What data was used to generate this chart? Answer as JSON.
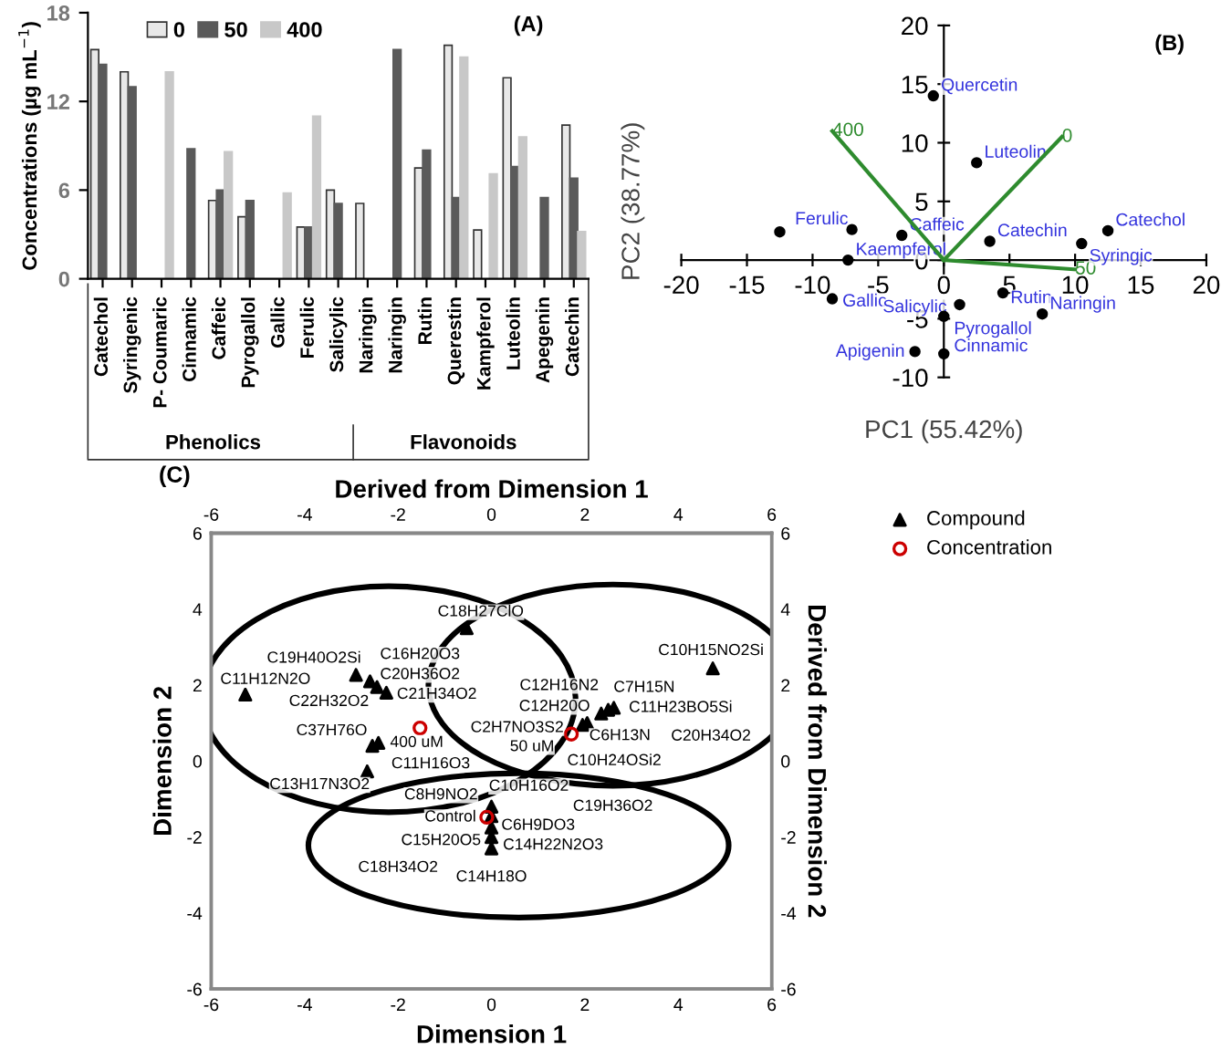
{
  "chart_data": [
    {
      "type": "bar",
      "title": "(A)",
      "ylabel": "Concentrations (µg mL$^{−1}$)",
      "categories": [
        "Catechol",
        "Syringenic",
        "P- Coumaric",
        "Cinnamic",
        "Caffeic",
        "Pyrogallol",
        "Gallic",
        "Ferulic",
        "Salicylic",
        "Naringin",
        "Naringin",
        "Rutin",
        "Querestin",
        "Kampferol",
        "Luteolin",
        "Apegenin",
        "Catechin"
      ],
      "series": [
        {
          "name": "0",
          "color": "#e8e8e8",
          "values": [
            15.5,
            14,
            null,
            null,
            5.3,
            4.2,
            null,
            3.5,
            6,
            5.1,
            null,
            7.5,
            15.8,
            3.3,
            13.6,
            null,
            10.4
          ]
        },
        {
          "name": "50",
          "color": "#5a5a5a",
          "values": [
            14.5,
            13,
            null,
            8.8,
            6,
            5.3,
            null,
            3.5,
            5.1,
            null,
            15.5,
            8.7,
            5.5,
            null,
            7.6,
            5.5,
            6.8
          ]
        },
        {
          "name": "400",
          "color": "#c8c8c8",
          "values": [
            null,
            null,
            14,
            null,
            8.6,
            null,
            5.8,
            11,
            null,
            null,
            null,
            null,
            15,
            7.1,
            9.6,
            null,
            3.2
          ]
        }
      ],
      "ylim": [
        0,
        18
      ],
      "yticks": [
        0,
        6,
        12,
        18
      ],
      "legend": "top left",
      "grid": false,
      "annotations": [
        "Phenolics",
        "Flavonoids"
      ]
    },
    {
      "type": "scatter",
      "title": "(B)",
      "xlabel": "PC1 (55.42%)",
      "ylabel": "PC2 (38.77%)",
      "xlim": [
        -20,
        20
      ],
      "xticks": [
        -20,
        -15,
        -10,
        -5,
        0,
        5,
        10,
        15,
        20
      ],
      "ylim": [
        -10,
        20
      ],
      "yticks": [
        -10,
        -5,
        0,
        5,
        10,
        15,
        20
      ],
      "grid": false,
      "series": [
        {
          "type": "scatter",
          "color": "#000000",
          "marker": "circle",
          "x": [
            -0.8,
            2.5,
            -12.5,
            -7,
            -7.3,
            -3.2,
            3.5,
            10.5,
            12.5,
            -8.5,
            1.2,
            4.5,
            0,
            7.5,
            -2.2,
            0
          ],
          "values": [
            14,
            8.3,
            2.4,
            2.6,
            0,
            2.1,
            1.6,
            1.4,
            2.5,
            -3.3,
            -3.8,
            -2.8,
            -4.8,
            -4.6,
            -7.8,
            -8
          ]
        },
        {
          "type": "line",
          "name": "400",
          "color": "#2e8b2e",
          "x": [
            0,
            -8.5
          ],
          "values": [
            0,
            11
          ]
        },
        {
          "type": "line",
          "name": "0",
          "color": "#2e8b2e",
          "x": [
            0,
            9
          ],
          "values": [
            0,
            10.5
          ]
        },
        {
          "type": "line",
          "name": "50",
          "color": "#2e8b2e",
          "x": [
            0,
            10
          ],
          "values": [
            0,
            -0.8
          ]
        }
      ],
      "annotations": [
        {
          "text": "Quercetin",
          "x": -0.8,
          "y": 14
        },
        {
          "text": "Luteolin",
          "x": 2.5,
          "y": 8.3
        },
        {
          "text": "Ferulic",
          "x": -12.5,
          "y": 2.4
        },
        {
          "text": "Kaempferol",
          "x": -7.3,
          "y": 0
        },
        {
          "text": "Caffeic",
          "x": -3.2,
          "y": 2.1
        },
        {
          "text": "Catechin",
          "x": 3.5,
          "y": 1.6
        },
        {
          "text": "Syringic",
          "x": 10.5,
          "y": 1.4
        },
        {
          "text": "Catechol",
          "x": 12.5,
          "y": 2.5
        },
        {
          "text": "Gallic",
          "x": -8.5,
          "y": -3.3
        },
        {
          "text": "Salicylic",
          "x": 1.2,
          "y": -3.8
        },
        {
          "text": "Rutin",
          "x": 4.5,
          "y": -2.8
        },
        {
          "text": "Pyrogallol",
          "x": 0,
          "y": -4.8
        },
        {
          "text": "Naringin",
          "x": 7.5,
          "y": -4.6
        },
        {
          "text": "Apigenin",
          "x": -2.2,
          "y": -7.8
        },
        {
          "text": "Cinnamic",
          "x": 0,
          "y": -8
        }
      ]
    },
    {
      "type": "scatter",
      "title": "(C)",
      "xlabel": "Dimension 1",
      "ylabel": "Dimension 2",
      "x2label": "Derived from Dimension 1",
      "y2label": "Derived from Dimension 2",
      "xlim": [
        -6,
        6
      ],
      "xticks": [
        -6,
        -4,
        -2,
        0,
        2,
        4,
        6
      ],
      "ylim": [
        -6,
        6
      ],
      "yticks": [
        -6,
        -4,
        -2,
        0,
        2,
        4,
        6
      ],
      "x2lim": [
        -6,
        6
      ],
      "x2ticks": [
        -6,
        -4,
        -2,
        0,
        2,
        4,
        6
      ],
      "y2lim": [
        -6,
        6
      ],
      "y2ticks": [
        -6,
        -4,
        -2,
        0,
        2,
        4,
        6
      ],
      "grid": false,
      "legend": "right",
      "series": [
        {
          "name": "Compound",
          "color": "#000000",
          "marker": "triangle",
          "x": [
            -5.27,
            -2.9,
            -2.6,
            -2.45,
            -2.25,
            -0.53,
            -2.55,
            -2.42,
            -2.66,
            0,
            0,
            0,
            0,
            0,
            1.95,
            2.05,
            2.35,
            2.5,
            2.62,
            4.74
          ],
          "values": [
            1.75,
            2.27,
            2.1,
            1.95,
            1.8,
            3.5,
            0.4,
            0.48,
            -0.27,
            -1.2,
            -1.45,
            -1.75,
            -2.0,
            -2.3,
            0.95,
            1.0,
            1.25,
            1.35,
            1.4,
            2.44
          ]
        },
        {
          "name": "Concentration",
          "color": "#cc0000",
          "marker": "circle",
          "x": [
            -1.53,
            1.71,
            -0.1
          ],
          "values": [
            0.87,
            0.71,
            -1.48
          ]
        }
      ],
      "annotations": [
        "C18H27ClO",
        "C19H40O2Si",
        "C16H20O3",
        "C11H12N2O",
        "C20H36O2",
        "C21H34O2",
        "C22H32O2",
        "C37H76O",
        "400 uM",
        "C11H16O3",
        "C13H17N3O2",
        "C8H9NO2",
        "C10H16O2",
        "C12H16N2",
        "C12H20O",
        "C2H7NO3S2",
        "50 uM",
        "Control",
        "C6H9DO3",
        "C15H20O5",
        "C14H22N2O3",
        "C18H34O2",
        "C14H18O",
        "C7H15N",
        "C11H23BO5Si",
        "C6H13N",
        "C20H34O2",
        "C10H24OSi2",
        "C19H36O2",
        "C10H15NO2Si"
      ]
    }
  ]
}
